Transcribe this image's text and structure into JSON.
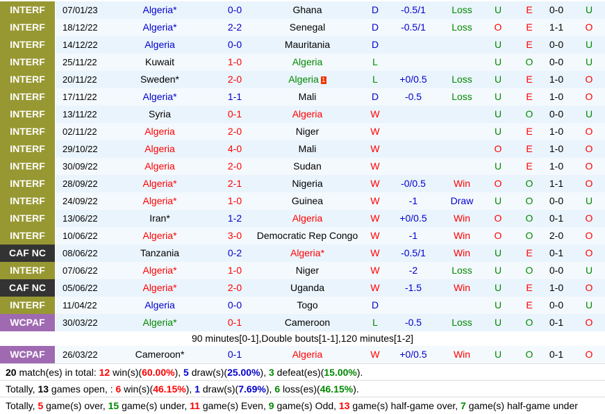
{
  "matches": [
    {
      "league": "INTERF",
      "league_type": "interf",
      "date": "07/01/23",
      "home": "Algeria*",
      "home_color": "blue",
      "score": "0-0",
      "score_color": "blue",
      "away": "Ghana",
      "away_color": "",
      "result": "D",
      "result_color": "blue",
      "handicap": "-0.5/1",
      "hcap_result": "Loss",
      "hcap_color": "green",
      "ou": "U",
      "ou_color": "green",
      "oe": "E",
      "oe_color": "red",
      "ht": "0-0",
      "hou": "U",
      "hou_color": "green"
    },
    {
      "league": "INTERF",
      "league_type": "interf",
      "date": "18/12/22",
      "home": "Algeria*",
      "home_color": "blue",
      "score": "2-2",
      "score_color": "blue",
      "away": "Senegal",
      "away_color": "",
      "result": "D",
      "result_color": "blue",
      "handicap": "-0.5/1",
      "hcap_result": "Loss",
      "hcap_color": "green",
      "ou": "O",
      "ou_color": "red",
      "oe": "E",
      "oe_color": "red",
      "ht": "1-1",
      "hou": "O",
      "hou_color": "red"
    },
    {
      "league": "INTERF",
      "league_type": "interf",
      "date": "14/12/22",
      "home": "Algeria",
      "home_color": "blue",
      "score": "0-0",
      "score_color": "blue",
      "away": "Mauritania",
      "away_color": "",
      "result": "D",
      "result_color": "blue",
      "handicap": "",
      "hcap_result": "",
      "hcap_color": "",
      "ou": "U",
      "ou_color": "green",
      "oe": "E",
      "oe_color": "red",
      "ht": "0-0",
      "hou": "U",
      "hou_color": "green"
    },
    {
      "league": "INTERF",
      "league_type": "interf",
      "date": "25/11/22",
      "home": "Kuwait",
      "home_color": "",
      "score": "1-0",
      "score_color": "red",
      "away": "Algeria",
      "away_color": "green",
      "result": "L",
      "result_color": "green",
      "handicap": "",
      "hcap_result": "",
      "hcap_color": "",
      "ou": "U",
      "ou_color": "green",
      "oe": "O",
      "oe_color": "green",
      "ht": "0-0",
      "hou": "U",
      "hou_color": "green"
    },
    {
      "league": "INTERF",
      "league_type": "interf",
      "date": "20/11/22",
      "home": "Sweden*",
      "home_color": "",
      "score": "2-0",
      "score_color": "red",
      "away": "Algeria",
      "away_color": "green",
      "away_card": "1",
      "result": "L",
      "result_color": "green",
      "handicap": "+0/0.5",
      "hcap_result": "Loss",
      "hcap_color": "green",
      "ou": "U",
      "ou_color": "green",
      "oe": "E",
      "oe_color": "red",
      "ht": "1-0",
      "hou": "O",
      "hou_color": "red"
    },
    {
      "league": "INTERF",
      "league_type": "interf",
      "date": "17/11/22",
      "home": "Algeria*",
      "home_color": "blue",
      "score": "1-1",
      "score_color": "blue",
      "away": "Mali",
      "away_color": "",
      "result": "D",
      "result_color": "blue",
      "handicap": "-0.5",
      "hcap_result": "Loss",
      "hcap_color": "green",
      "ou": "U",
      "ou_color": "green",
      "oe": "E",
      "oe_color": "red",
      "ht": "1-0",
      "hou": "O",
      "hou_color": "red"
    },
    {
      "league": "INTERF",
      "league_type": "interf",
      "date": "13/11/22",
      "home": "Syria",
      "home_color": "",
      "score": "0-1",
      "score_color": "red",
      "away": "Algeria",
      "away_color": "red",
      "result": "W",
      "result_color": "red",
      "handicap": "",
      "hcap_result": "",
      "hcap_color": "",
      "ou": "U",
      "ou_color": "green",
      "oe": "O",
      "oe_color": "green",
      "ht": "0-0",
      "hou": "U",
      "hou_color": "green"
    },
    {
      "league": "INTERF",
      "league_type": "interf",
      "date": "02/11/22",
      "home": "Algeria",
      "home_color": "red",
      "score": "2-0",
      "score_color": "red",
      "away": "Niger",
      "away_color": "",
      "result": "W",
      "result_color": "red",
      "handicap": "",
      "hcap_result": "",
      "hcap_color": "",
      "ou": "U",
      "ou_color": "green",
      "oe": "E",
      "oe_color": "red",
      "ht": "1-0",
      "hou": "O",
      "hou_color": "red"
    },
    {
      "league": "INTERF",
      "league_type": "interf",
      "date": "29/10/22",
      "home": "Algeria",
      "home_color": "red",
      "score": "4-0",
      "score_color": "red",
      "away": "Mali",
      "away_color": "",
      "result": "W",
      "result_color": "red",
      "handicap": "",
      "hcap_result": "",
      "hcap_color": "",
      "ou": "O",
      "ou_color": "red",
      "oe": "E",
      "oe_color": "red",
      "ht": "1-0",
      "hou": "O",
      "hou_color": "red"
    },
    {
      "league": "INTERF",
      "league_type": "interf",
      "date": "30/09/22",
      "home": "Algeria",
      "home_color": "red",
      "score": "2-0",
      "score_color": "red",
      "away": "Sudan",
      "away_color": "",
      "result": "W",
      "result_color": "red",
      "handicap": "",
      "hcap_result": "",
      "hcap_color": "",
      "ou": "U",
      "ou_color": "green",
      "oe": "E",
      "oe_color": "red",
      "ht": "1-0",
      "hou": "O",
      "hou_color": "red"
    },
    {
      "league": "INTERF",
      "league_type": "interf",
      "date": "28/09/22",
      "home": "Algeria*",
      "home_color": "red",
      "score": "2-1",
      "score_color": "red",
      "away": "Nigeria",
      "away_color": "",
      "result": "W",
      "result_color": "red",
      "handicap": "-0/0.5",
      "hcap_result": "Win",
      "hcap_color": "red",
      "ou": "O",
      "ou_color": "red",
      "oe": "O",
      "oe_color": "green",
      "ht": "1-1",
      "hou": "O",
      "hou_color": "red"
    },
    {
      "league": "INTERF",
      "league_type": "interf",
      "date": "24/09/22",
      "home": "Algeria*",
      "home_color": "red",
      "score": "1-0",
      "score_color": "red",
      "away": "Guinea",
      "away_color": "",
      "result": "W",
      "result_color": "red",
      "handicap": "-1",
      "hcap_result": "Draw",
      "hcap_color": "blue",
      "ou": "U",
      "ou_color": "green",
      "oe": "O",
      "oe_color": "green",
      "ht": "0-0",
      "hou": "U",
      "hou_color": "green"
    },
    {
      "league": "INTERF",
      "league_type": "interf",
      "date": "13/06/22",
      "home": "Iran*",
      "home_color": "",
      "score": "1-2",
      "score_color": "blue",
      "away": "Algeria",
      "away_color": "red",
      "result": "W",
      "result_color": "red",
      "handicap": "+0/0.5",
      "hcap_result": "Win",
      "hcap_color": "red",
      "ou": "O",
      "ou_color": "red",
      "oe": "O",
      "oe_color": "green",
      "ht": "0-1",
      "hou": "O",
      "hou_color": "red"
    },
    {
      "league": "INTERF",
      "league_type": "interf",
      "date": "10/06/22",
      "home": "Algeria*",
      "home_color": "red",
      "score": "3-0",
      "score_color": "red",
      "away": "Democratic Rep Congo",
      "away_color": "",
      "result": "W",
      "result_color": "red",
      "handicap": "-1",
      "hcap_result": "Win",
      "hcap_color": "red",
      "ou": "O",
      "ou_color": "red",
      "oe": "O",
      "oe_color": "green",
      "ht": "2-0",
      "hou": "O",
      "hou_color": "red"
    },
    {
      "league": "CAF NC",
      "league_type": "cafnc",
      "date": "08/06/22",
      "home": "Tanzania",
      "home_color": "",
      "score": "0-2",
      "score_color": "blue",
      "away": "Algeria*",
      "away_color": "red",
      "result": "W",
      "result_color": "red",
      "handicap": "-0.5/1",
      "hcap_result": "Win",
      "hcap_color": "red",
      "ou": "U",
      "ou_color": "green",
      "oe": "E",
      "oe_color": "red",
      "ht": "0-1",
      "hou": "O",
      "hou_color": "red"
    },
    {
      "league": "INTERF",
      "league_type": "interf",
      "date": "07/06/22",
      "home": "Algeria*",
      "home_color": "red",
      "score": "1-0",
      "score_color": "red",
      "away": "Niger",
      "away_color": "",
      "result": "W",
      "result_color": "red",
      "handicap": "-2",
      "hcap_result": "Loss",
      "hcap_color": "green",
      "ou": "U",
      "ou_color": "green",
      "oe": "O",
      "oe_color": "green",
      "ht": "0-0",
      "hou": "U",
      "hou_color": "green"
    },
    {
      "league": "CAF NC",
      "league_type": "cafnc",
      "date": "05/06/22",
      "home": "Algeria*",
      "home_color": "red",
      "score": "2-0",
      "score_color": "red",
      "away": "Uganda",
      "away_color": "",
      "result": "W",
      "result_color": "red",
      "handicap": "-1.5",
      "hcap_result": "Win",
      "hcap_color": "red",
      "ou": "U",
      "ou_color": "green",
      "oe": "E",
      "oe_color": "red",
      "ht": "1-0",
      "hou": "O",
      "hou_color": "red"
    },
    {
      "league": "INTERF",
      "league_type": "interf",
      "date": "11/04/22",
      "home": "Algeria",
      "home_color": "blue",
      "score": "0-0",
      "score_color": "blue",
      "away": "Togo",
      "away_color": "",
      "result": "D",
      "result_color": "blue",
      "handicap": "",
      "hcap_result": "",
      "hcap_color": "",
      "ou": "U",
      "ou_color": "green",
      "oe": "E",
      "oe_color": "red",
      "ht": "0-0",
      "hou": "U",
      "hou_color": "green"
    },
    {
      "league": "WCPAF",
      "league_type": "wcpaf",
      "date": "30/03/22",
      "home": "Algeria*",
      "home_color": "green",
      "score": "0-1",
      "score_color": "red",
      "away": "Cameroon",
      "away_color": "",
      "result": "L",
      "result_color": "green",
      "handicap": "-0.5",
      "hcap_result": "Loss",
      "hcap_color": "green",
      "ou": "U",
      "ou_color": "green",
      "oe": "O",
      "oe_color": "green",
      "ht": "0-1",
      "hou": "O",
      "hou_color": "red"
    },
    {
      "league": "WCPAF",
      "league_type": "wcpaf",
      "date": "26/03/22",
      "home": "Cameroon*",
      "home_color": "",
      "score": "0-1",
      "score_color": "blue",
      "away": "Algeria",
      "away_color": "red",
      "result": "W",
      "result_color": "red",
      "handicap": "+0/0.5",
      "hcap_result": "Win",
      "hcap_color": "red",
      "ou": "U",
      "ou_color": "green",
      "oe": "O",
      "oe_color": "green",
      "ht": "0-1",
      "hou": "O",
      "hou_color": "red"
    }
  ],
  "note_after_row19": "90 minutes[0-1],Double bouts[1-1],120 minutes[1-2]",
  "summary": {
    "line1": {
      "count": "20",
      "t1": " match(es) in total: ",
      "wins": "12",
      "t2": " win(s)(",
      "win_pct": "60.00%",
      "t3": "), ",
      "draws": "5",
      "t4": " draw(s)(",
      "draw_pct": "25.00%",
      "t5": "), ",
      "defeats": "3",
      "t6": " defeat(es)(",
      "defeat_pct": "15.00%",
      "t7": ")."
    },
    "line2": {
      "t0": "Totally, ",
      "open": "13",
      "t1": " games open, : ",
      "wins": "6",
      "t2": " win(s)(",
      "win_pct": "46.15%",
      "t3": "), ",
      "draws": "1",
      "t4": " draw(s)(",
      "draw_pct": "7.69%",
      "t5": "), ",
      "losses": "6",
      "t6": " loss(es)(",
      "loss_pct": "46.15%",
      "t7": ")."
    },
    "line3": {
      "t0": "Totally, ",
      "over": "5",
      "t1": " game(s) over, ",
      "under": "15",
      "t2": " game(s) under, ",
      "even": "11",
      "t3": " game(s) Even, ",
      "odd": "9",
      "t4": " game(s) Odd, ",
      "hgo": "13",
      "t5": " game(s) half-game over, ",
      "hgu": "7",
      "t6": " game(s) half-game under"
    }
  },
  "colors": {
    "interf": "#989833",
    "cafnc": "#333333",
    "wcpaf": "#9f6ab2",
    "blue": "#0000cc",
    "red": "#ff0000",
    "green": "#008800"
  }
}
